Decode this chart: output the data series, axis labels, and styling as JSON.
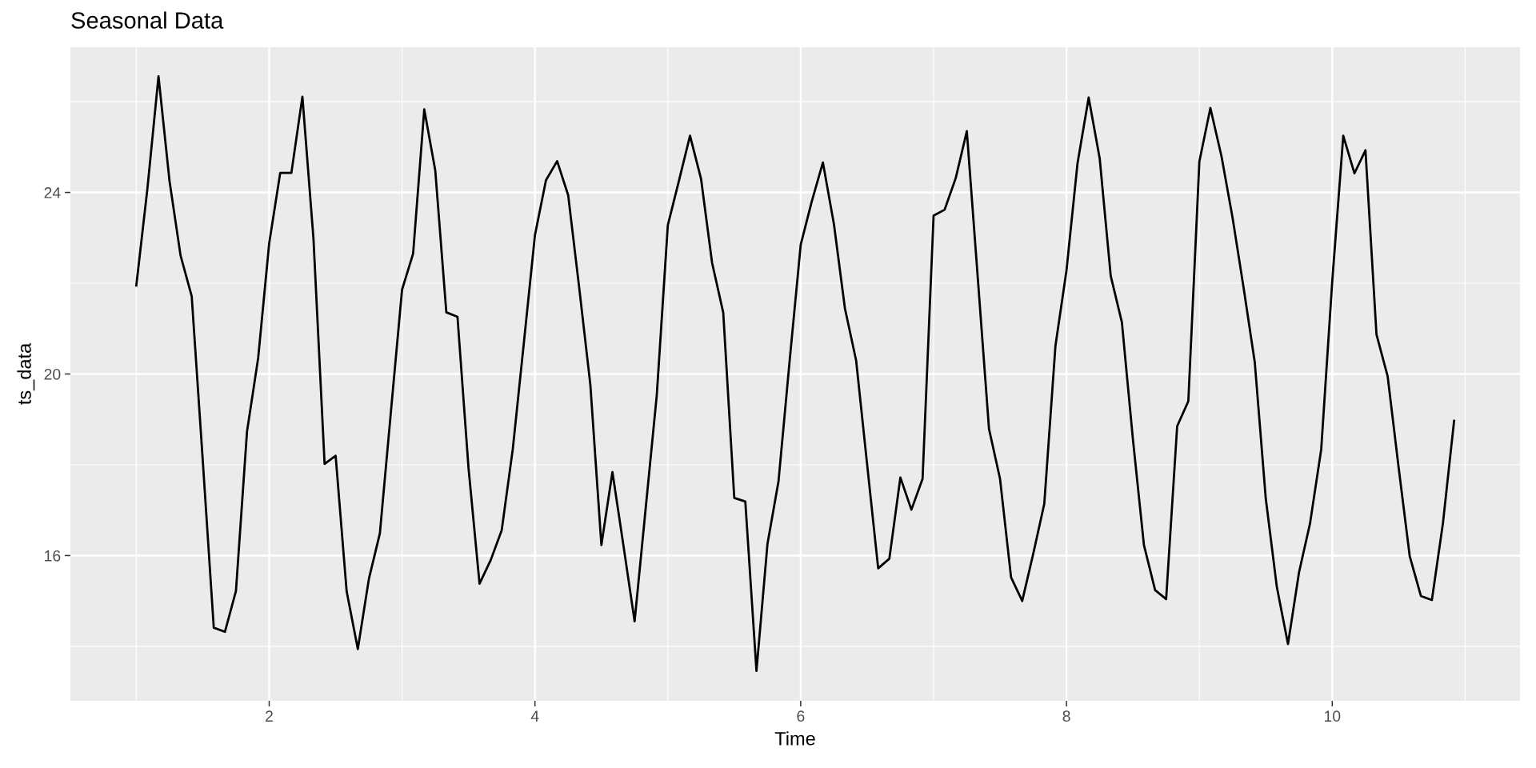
{
  "chart_data": {
    "type": "line",
    "title": "Seasonal Data",
    "xlabel": "Time",
    "ylabel": "ts_data",
    "x": [
      1.0,
      1.083,
      1.167,
      1.25,
      1.333,
      1.417,
      1.5,
      1.583,
      1.667,
      1.75,
      1.833,
      1.917,
      2.0,
      2.083,
      2.167,
      2.25,
      2.333,
      2.417,
      2.5,
      2.583,
      2.667,
      2.75,
      2.833,
      2.917,
      3.0,
      3.083,
      3.167,
      3.25,
      3.333,
      3.417,
      3.5,
      3.583,
      3.667,
      3.75,
      3.833,
      3.917,
      4.0,
      4.083,
      4.167,
      4.25,
      4.333,
      4.417,
      4.5,
      4.583,
      4.667,
      4.75,
      4.833,
      4.917,
      5.0,
      5.083,
      5.167,
      5.25,
      5.333,
      5.417,
      5.5,
      5.583,
      5.667,
      5.75,
      5.833,
      5.917,
      6.0,
      6.083,
      6.167,
      6.25,
      6.333,
      6.417,
      6.5,
      6.583,
      6.667,
      6.75,
      6.833,
      6.917,
      7.0,
      7.083,
      7.167,
      7.25,
      7.333,
      7.417,
      7.5,
      7.583,
      7.667,
      7.75,
      7.833,
      7.917,
      8.0,
      8.083,
      8.167,
      8.25,
      8.333,
      8.417,
      8.5,
      8.583,
      8.667,
      8.75,
      8.833,
      8.917,
      9.0,
      9.083,
      9.167,
      9.25,
      9.333,
      9.417,
      9.5,
      9.583,
      9.667,
      9.75,
      9.833,
      9.917,
      10.0,
      10.083,
      10.167,
      10.25,
      10.333,
      10.417,
      10.5,
      10.583,
      10.667,
      10.75,
      10.833,
      10.917
    ],
    "series": [
      {
        "color": "#000000",
        "values": [
          21.95,
          24.07,
          26.56,
          24.25,
          22.61,
          21.71,
          18.1,
          14.41,
          14.32,
          15.22,
          18.73,
          20.35,
          22.88,
          24.43,
          24.43,
          26.11,
          22.99,
          18.02,
          18.2,
          15.21,
          13.94,
          15.48,
          16.49,
          19.2,
          21.86,
          22.65,
          25.83,
          24.48,
          21.36,
          21.26,
          17.93,
          15.38,
          15.9,
          16.56,
          18.34,
          20.7,
          23.06,
          24.27,
          24.69,
          23.94,
          21.9,
          19.76,
          16.23,
          17.84,
          16.2,
          14.55,
          17.03,
          19.54,
          23.28,
          24.25,
          25.25,
          24.3,
          22.45,
          21.35,
          17.27,
          17.19,
          13.46,
          16.26,
          17.64,
          20.3,
          22.85,
          23.8,
          24.66,
          23.3,
          21.44,
          20.3,
          18.0,
          15.72,
          15.93,
          17.72,
          17.01,
          17.69,
          23.49,
          23.62,
          24.32,
          25.35,
          22.1,
          18.79,
          17.69,
          15.52,
          15.0,
          16.04,
          17.14,
          20.62,
          22.28,
          24.64,
          26.09,
          24.75,
          22.16,
          21.14,
          18.56,
          16.23,
          15.24,
          15.04,
          18.85,
          19.4,
          24.68,
          25.86,
          24.79,
          23.44,
          21.9,
          20.26,
          17.25,
          15.31,
          14.05,
          15.63,
          16.71,
          18.34,
          22.04,
          25.25,
          24.42,
          24.93,
          20.87,
          19.95,
          17.93,
          15.99,
          15.11,
          15.02,
          16.71,
          18.97
        ]
      }
    ],
    "xlim": [
      0.504,
      11.413
    ],
    "ylim": [
      12.8,
      27.2
    ],
    "xticks": [
      2,
      4,
      6,
      8,
      10
    ],
    "yticks": [
      16,
      20,
      24
    ],
    "grid": true,
    "line_style": "solid",
    "marker": "none",
    "legend": false
  }
}
